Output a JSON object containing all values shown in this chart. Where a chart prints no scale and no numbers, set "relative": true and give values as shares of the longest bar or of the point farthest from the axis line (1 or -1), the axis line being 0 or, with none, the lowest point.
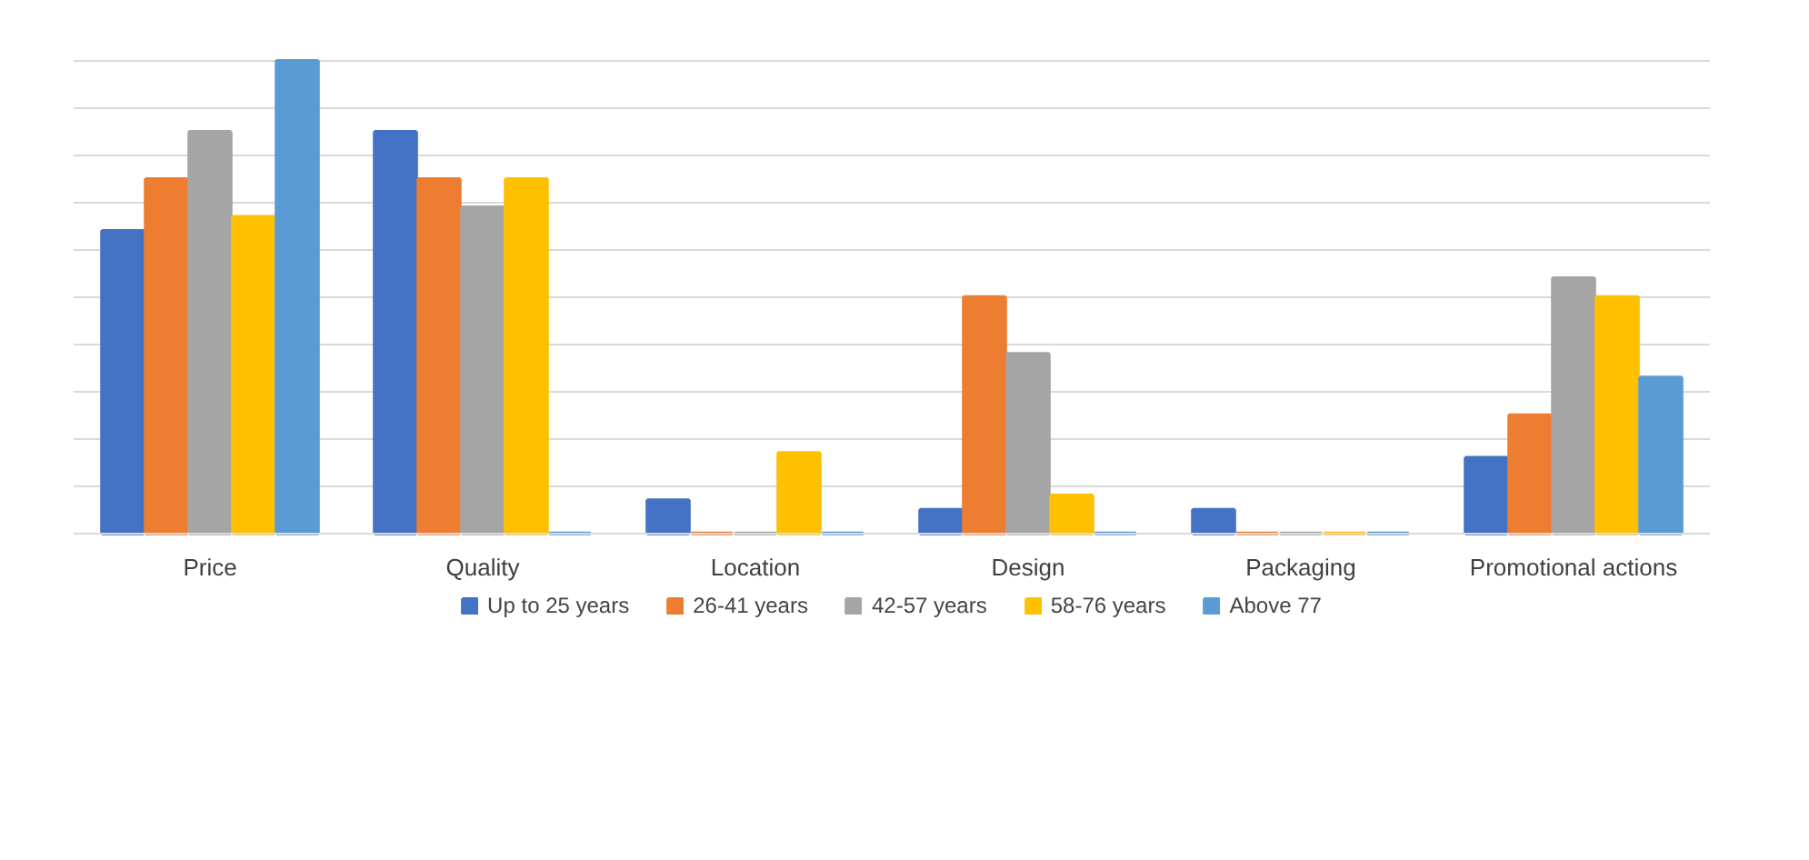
{
  "chart_data": {
    "type": "bar",
    "relative": true,
    "grid": "y",
    "legend": "bottom",
    "categories": [
      "Price",
      "Quality",
      "Location",
      "Design",
      "Packaging",
      "Promotional actions"
    ],
    "series": [
      {
        "name": "Up to 25 years",
        "color": "#4472c4",
        "values": [
          0.64,
          0.85,
          0.07,
          0.05,
          0.05,
          0.16
        ]
      },
      {
        "name": "26-41 years",
        "color": "#ed7d31",
        "values": [
          0.75,
          0.75,
          0,
          0.5,
          0,
          0.25
        ]
      },
      {
        "name": "42-57 years",
        "color": "#a5a5a5",
        "values": [
          0.85,
          0.69,
          0,
          0.38,
          0,
          0.54
        ]
      },
      {
        "name": "58-76 years",
        "color": "#ffc000",
        "values": [
          0.67,
          0.75,
          0.17,
          0.08,
          0,
          0.5
        ]
      },
      {
        "name": "Above 77",
        "color": "#5b9bd5",
        "values": [
          1,
          0,
          0,
          0,
          0,
          0.33
        ]
      }
    ]
  }
}
